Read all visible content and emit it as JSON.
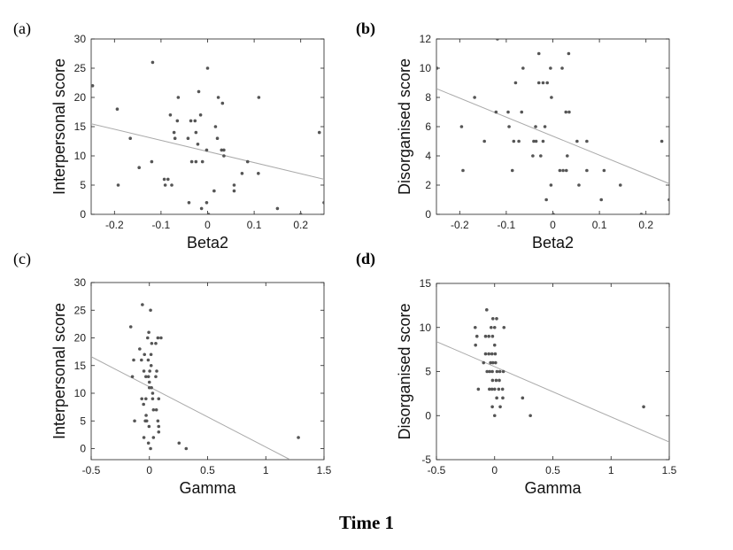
{
  "figure_title": "Time 1",
  "chart_data": [
    {
      "type": "scatter",
      "panel_label": "(a)",
      "panel_bold": false,
      "xlabel": "Beta2",
      "ylabel": "Interpersonal score",
      "xlim": [
        -0.25,
        0.25
      ],
      "ylim": [
        0,
        30
      ],
      "xticks": [
        -0.2,
        -0.1,
        0,
        0.1,
        0.2
      ],
      "yticks": [
        0,
        5,
        10,
        15,
        20,
        25,
        30
      ],
      "fit_line": [
        [
          -0.25,
          15.5
        ],
        [
          0.25,
          6
        ]
      ],
      "points": [
        [
          -0.247,
          22
        ],
        [
          -0.118,
          26
        ],
        [
          0,
          25
        ],
        [
          -0.194,
          18
        ],
        [
          -0.063,
          20
        ],
        [
          -0.019,
          21
        ],
        [
          0.023,
          20
        ],
        [
          0.032,
          19
        ],
        [
          -0.08,
          17
        ],
        [
          -0.065,
          16
        ],
        [
          -0.036,
          16
        ],
        [
          -0.027,
          16
        ],
        [
          -0.015,
          17
        ],
        [
          0.017,
          15
        ],
        [
          -0.072,
          14
        ],
        [
          -0.025,
          14
        ],
        [
          -0.166,
          13
        ],
        [
          -0.07,
          13
        ],
        [
          -0.042,
          13
        ],
        [
          0.021,
          13
        ],
        [
          -0.021,
          12
        ],
        [
          -0.002,
          11
        ],
        [
          0.03,
          11
        ],
        [
          0.035,
          11
        ],
        [
          0.035,
          10
        ],
        [
          -0.12,
          9
        ],
        [
          -0.034,
          9
        ],
        [
          -0.025,
          9
        ],
        [
          -0.011,
          9
        ],
        [
          -0.147,
          8
        ],
        [
          -0.093,
          6
        ],
        [
          -0.085,
          6
        ],
        [
          -0.192,
          5
        ],
        [
          -0.091,
          5
        ],
        [
          -0.077,
          5
        ],
        [
          0.014,
          4
        ],
        [
          -0.04,
          2
        ],
        [
          -0.002,
          2
        ],
        [
          -0.013,
          1
        ],
        [
          0.002,
          0
        ],
        [
          0.074,
          7
        ],
        [
          0.086,
          9
        ],
        [
          0.057,
          5
        ],
        [
          0.057,
          4
        ],
        [
          0.109,
          7
        ],
        [
          0.11,
          20
        ],
        [
          0.15,
          1
        ],
        [
          0.2,
          0
        ],
        [
          0.24,
          14
        ],
        [
          0.25,
          2
        ]
      ]
    },
    {
      "type": "scatter",
      "panel_label": "(b)",
      "panel_bold": true,
      "xlabel": "Beta2",
      "ylabel": "Disorganised score",
      "xlim": [
        -0.25,
        0.25
      ],
      "ylim": [
        0,
        12
      ],
      "xticks": [
        -0.2,
        -0.1,
        0,
        0.1,
        0.2
      ],
      "yticks": [
        0,
        2,
        4,
        6,
        8,
        10,
        12
      ],
      "fit_line": [
        [
          -0.25,
          8.6
        ],
        [
          0.25,
          2.1
        ]
      ],
      "points": [
        [
          -0.119,
          12
        ],
        [
          -0.249,
          10
        ],
        [
          -0.03,
          11
        ],
        [
          0.034,
          11
        ],
        [
          -0.064,
          10
        ],
        [
          -0.005,
          10
        ],
        [
          0.02,
          10
        ],
        [
          -0.08,
          9
        ],
        [
          -0.03,
          9
        ],
        [
          -0.021,
          9
        ],
        [
          -0.012,
          9
        ],
        [
          -0.168,
          8
        ],
        [
          -0.003,
          8
        ],
        [
          -0.122,
          7
        ],
        [
          -0.096,
          7
        ],
        [
          -0.067,
          7
        ],
        [
          0.028,
          7
        ],
        [
          0.035,
          7
        ],
        [
          -0.196,
          6
        ],
        [
          -0.094,
          6
        ],
        [
          -0.037,
          6
        ],
        [
          -0.017,
          6
        ],
        [
          -0.147,
          5
        ],
        [
          -0.084,
          5
        ],
        [
          -0.073,
          5
        ],
        [
          -0.041,
          5
        ],
        [
          -0.036,
          5
        ],
        [
          -0.021,
          5
        ],
        [
          0.052,
          5
        ],
        [
          0.073,
          5
        ],
        [
          0.234,
          5
        ],
        [
          -0.043,
          4
        ],
        [
          -0.026,
          4
        ],
        [
          0.031,
          4
        ],
        [
          -0.193,
          3
        ],
        [
          -0.087,
          3
        ],
        [
          0.015,
          3
        ],
        [
          0.022,
          3
        ],
        [
          0.029,
          3
        ],
        [
          0.073,
          3
        ],
        [
          0.11,
          3
        ],
        [
          -0.004,
          2
        ],
        [
          0.056,
          2
        ],
        [
          0.145,
          2
        ],
        [
          -0.014,
          1
        ],
        [
          0.104,
          1
        ],
        [
          0.25,
          1
        ],
        [
          0.001,
          0
        ],
        [
          0.19,
          0
        ]
      ]
    },
    {
      "type": "scatter",
      "panel_label": "(c)",
      "panel_bold": false,
      "xlabel": "Gamma",
      "ylabel": "Interpersonal score",
      "xlim": [
        -0.5,
        1.5
      ],
      "ylim": [
        -2,
        30
      ],
      "xticks": [
        -0.5,
        0,
        0.5,
        1,
        1.5
      ],
      "yticks": [
        0,
        5,
        10,
        15,
        20,
        25,
        30
      ],
      "fit_line": [
        [
          -0.5,
          16.6
        ],
        [
          1.2,
          -1.9
        ]
      ],
      "points": [
        [
          -0.06,
          26
        ],
        [
          0.01,
          25
        ],
        [
          -0.16,
          22
        ],
        [
          -0.005,
          21
        ],
        [
          -0.015,
          20
        ],
        [
          0.073,
          20
        ],
        [
          0.1,
          20
        ],
        [
          0.02,
          19
        ],
        [
          0.055,
          19
        ],
        [
          -0.083,
          18
        ],
        [
          -0.042,
          17
        ],
        [
          0.014,
          17
        ],
        [
          -0.135,
          16
        ],
        [
          -0.068,
          16
        ],
        [
          -0.01,
          16
        ],
        [
          0.015,
          15
        ],
        [
          -0.047,
          14
        ],
        [
          0.003,
          14
        ],
        [
          0.063,
          14
        ],
        [
          -0.146,
          13
        ],
        [
          -0.03,
          13
        ],
        [
          -0.008,
          13
        ],
        [
          0.055,
          13
        ],
        [
          0,
          12
        ],
        [
          0,
          11
        ],
        [
          0.018,
          11
        ],
        [
          0.028,
          10
        ],
        [
          -0.065,
          9
        ],
        [
          -0.03,
          9
        ],
        [
          0.028,
          9
        ],
        [
          0.08,
          9
        ],
        [
          -0.05,
          8
        ],
        [
          0.035,
          7
        ],
        [
          0.06,
          7
        ],
        [
          -0.028,
          6
        ],
        [
          -0.127,
          5
        ],
        [
          -0.035,
          5
        ],
        [
          -0.023,
          5
        ],
        [
          0.073,
          5
        ],
        [
          -0.003,
          4
        ],
        [
          0.08,
          4
        ],
        [
          0.08,
          3
        ],
        [
          -0.047,
          2
        ],
        [
          0.035,
          2
        ],
        [
          -0.008,
          1
        ],
        [
          0.255,
          1
        ],
        [
          0.01,
          0
        ],
        [
          0.316,
          0
        ],
        [
          1.28,
          2
        ]
      ]
    },
    {
      "type": "scatter",
      "panel_label": "(d)",
      "panel_bold": true,
      "xlabel": "Gamma",
      "ylabel": "Disorganised score",
      "xlim": [
        -0.5,
        1.5
      ],
      "ylim": [
        -5,
        15
      ],
      "xticks": [
        -0.5,
        0,
        0.5,
        1,
        1.5
      ],
      "yticks": [
        -5,
        0,
        5,
        10,
        15
      ],
      "fit_line": [
        [
          -0.5,
          8.4
        ],
        [
          1.5,
          -3
        ]
      ],
      "points": [
        [
          -0.068,
          12
        ],
        [
          -0.015,
          11
        ],
        [
          0.017,
          11
        ],
        [
          -0.167,
          10
        ],
        [
          -0.03,
          10
        ],
        [
          0,
          10
        ],
        [
          0.08,
          10
        ],
        [
          -0.152,
          9
        ],
        [
          -0.078,
          9
        ],
        [
          -0.05,
          9
        ],
        [
          -0.018,
          9
        ],
        [
          -0.164,
          8
        ],
        [
          0,
          8
        ],
        [
          -0.078,
          7
        ],
        [
          -0.05,
          7
        ],
        [
          -0.023,
          7
        ],
        [
          0.005,
          7
        ],
        [
          -0.095,
          6
        ],
        [
          -0.035,
          6
        ],
        [
          -0.015,
          6
        ],
        [
          0.008,
          6
        ],
        [
          -0.065,
          5
        ],
        [
          -0.043,
          5
        ],
        [
          -0.02,
          5
        ],
        [
          0.02,
          5
        ],
        [
          0.045,
          5
        ],
        [
          0.075,
          5
        ],
        [
          -0.018,
          4
        ],
        [
          0.013,
          4
        ],
        [
          0.04,
          4
        ],
        [
          -0.14,
          3
        ],
        [
          -0.045,
          3
        ],
        [
          -0.023,
          3
        ],
        [
          0,
          3
        ],
        [
          0.035,
          3
        ],
        [
          0.068,
          3
        ],
        [
          0.018,
          2
        ],
        [
          0.07,
          2
        ],
        [
          0.24,
          2
        ],
        [
          -0.02,
          1
        ],
        [
          0.048,
          1
        ],
        [
          0,
          0
        ],
        [
          0.307,
          0
        ],
        [
          1.28,
          1
        ]
      ]
    }
  ]
}
